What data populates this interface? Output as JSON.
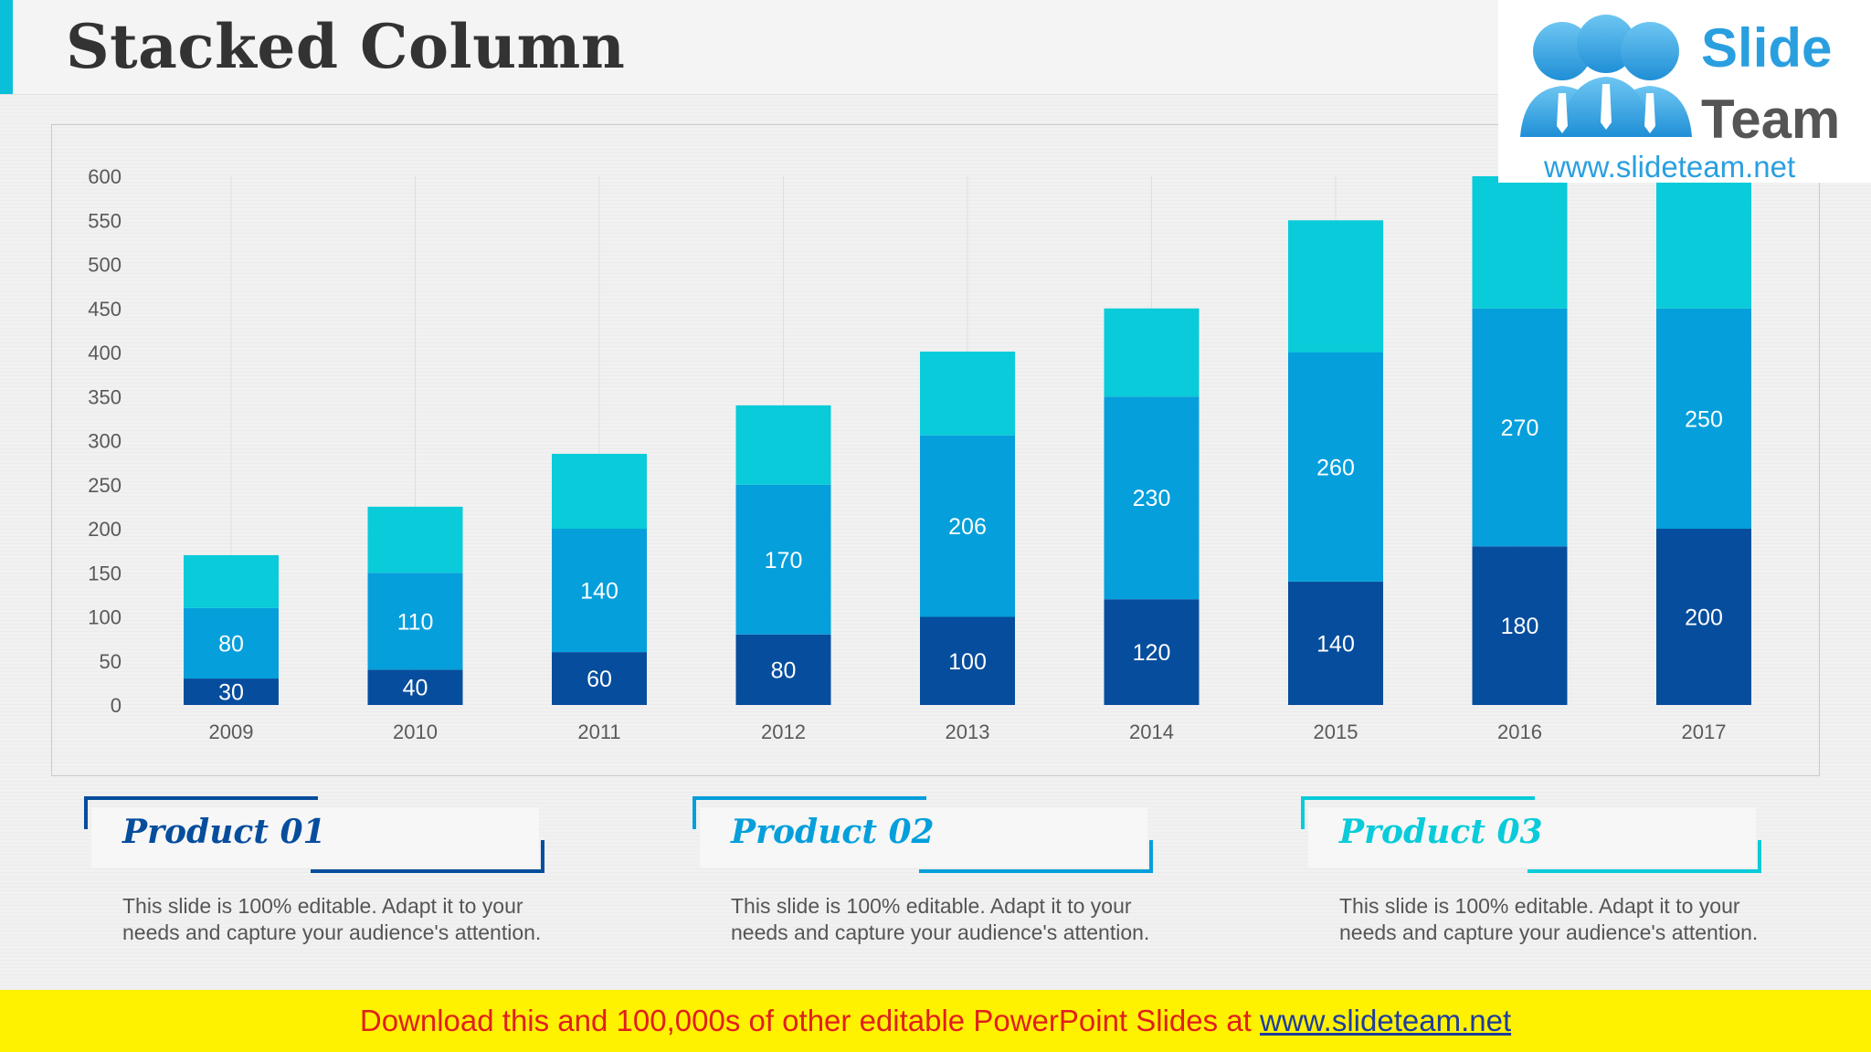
{
  "header": {
    "title": "Stacked Column"
  },
  "logo": {
    "word1": "Slide",
    "word2": "Team",
    "url": "www.slideteam.net",
    "icon": "people-group-icon"
  },
  "colors": {
    "product01": "#064d9d",
    "product02": "#059fdb",
    "product03": "#09cbd9",
    "accent": "#0ac0d8",
    "banner_bg": "#fff200",
    "banner_text": "#e0201c"
  },
  "chart_data": {
    "type": "bar",
    "stacked": true,
    "categories": [
      "2009",
      "2010",
      "2011",
      "2012",
      "2013",
      "2014",
      "2015",
      "2016",
      "2017"
    ],
    "series": [
      {
        "values": [
          30,
          40,
          60,
          80,
          100,
          120,
          140,
          180,
          200
        ],
        "color": "#064d9d",
        "labels": [
          "30",
          "40",
          "60",
          "80",
          "100",
          "120",
          "140",
          "180",
          "200"
        ]
      },
      {
        "values": [
          80,
          110,
          140,
          170,
          206,
          230,
          260,
          270,
          250
        ],
        "color": "#059fdb",
        "labels": [
          "80",
          "110",
          "140",
          "170",
          "206",
          "230",
          "260",
          "270",
          "250"
        ]
      },
      {
        "values": [
          60,
          75,
          85,
          90,
          95,
          100,
          150,
          150,
          150
        ],
        "color": "#09cbd9"
      }
    ],
    "yticks": [
      "0",
      "50",
      "100",
      "150",
      "200",
      "250",
      "300",
      "350",
      "400",
      "450",
      "500",
      "550",
      "600"
    ],
    "ylim": [
      0,
      600
    ],
    "grid": "vertical",
    "legend": "none"
  },
  "products": [
    {
      "name": "Product 01",
      "color": "#064d9d",
      "desc_line1": "This slide is 100% editable. Adapt it to your",
      "desc_line2": "needs and capture your audience's attention."
    },
    {
      "name": "Product 02",
      "color": "#059fdb",
      "desc_line1": "This slide is 100% editable. Adapt it to your",
      "desc_line2": "needs and capture your audience's attention."
    },
    {
      "name": "Product 03",
      "color": "#09cbd9",
      "desc_line1": "This slide is 100% editable. Adapt it to your",
      "desc_line2": "needs and capture your audience's attention."
    }
  ],
  "banner": {
    "text": "Download this and 100,000s of other editable PowerPoint Slides at ",
    "link": "www.slideteam.net"
  }
}
